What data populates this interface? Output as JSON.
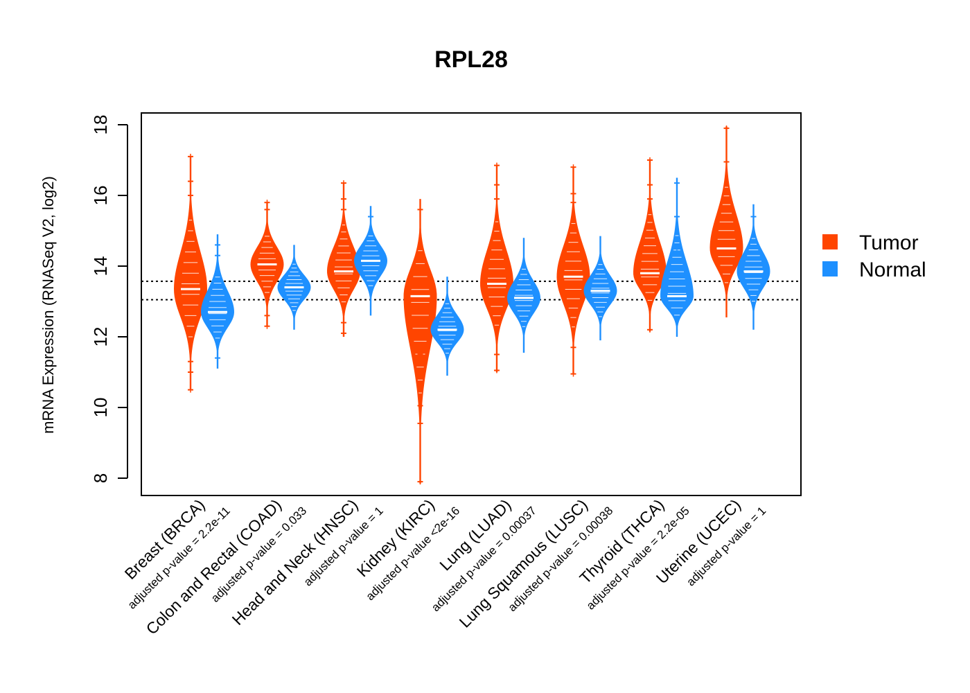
{
  "chart_data": {
    "type": "violin",
    "title": "RPL28",
    "xlabel": "",
    "ylabel": "mRNA Expression (RNASeq V2, log2)",
    "ylim": [
      7.5,
      18.3
    ],
    "yticks": [
      8,
      10,
      12,
      14,
      16,
      18
    ],
    "reference_lines": [
      13.05,
      13.57
    ],
    "colors": {
      "Tumor": "#FF4500",
      "Normal": "#1E90FF"
    },
    "legend": {
      "position": "right",
      "entries": [
        "Tumor",
        "Normal"
      ]
    },
    "groups": [
      {
        "name": "Breast (BRCA)",
        "pvalue": "adjusted p-value = 2.2e-11",
        "tumor": {
          "median": 13.35,
          "min": 10.5,
          "max": 17.1,
          "outliers": [
            10.5,
            11.0,
            11.3,
            16.0,
            16.4,
            17.1
          ]
        },
        "normal": {
          "median": 12.7,
          "min": 11.1,
          "max": 14.9,
          "outliers": [
            11.4,
            14.3,
            14.6
          ]
        }
      },
      {
        "name": "Colon and Rectal (COAD)",
        "pvalue": "adjusted p-value = 0.033",
        "tumor": {
          "median": 14.05,
          "min": 12.3,
          "max": 15.8,
          "outliers": [
            12.3,
            12.6,
            15.6,
            15.8
          ]
        },
        "normal": {
          "median": 13.4,
          "min": 12.2,
          "max": 14.6,
          "outliers": []
        }
      },
      {
        "name": "Head and Neck (HNSC)",
        "pvalue": "adjusted p-value = 1",
        "tumor": {
          "median": 13.85,
          "min": 12.0,
          "max": 16.35,
          "outliers": [
            12.1,
            12.4,
            15.6,
            15.9,
            16.35
          ]
        },
        "normal": {
          "median": 14.15,
          "min": 12.6,
          "max": 15.7,
          "outliers": [
            15.4
          ]
        }
      },
      {
        "name": "Kidney (KIRC)",
        "pvalue": "adjusted p-value <2e-16",
        "tumor": {
          "median": 13.15,
          "min": 7.85,
          "max": 15.9,
          "outliers": [
            7.9,
            9.55,
            10.05,
            11.5,
            15.6
          ]
        },
        "normal": {
          "median": 12.2,
          "min": 10.9,
          "max": 13.7,
          "outliers": []
        }
      },
      {
        "name": "Lung (LUAD)",
        "pvalue": "adjusted p-value = 0.00037",
        "tumor": {
          "median": 13.5,
          "min": 11.0,
          "max": 16.85,
          "outliers": [
            11.05,
            11.5,
            15.9,
            16.3,
            16.85
          ]
        },
        "normal": {
          "median": 13.1,
          "min": 11.55,
          "max": 14.8,
          "outliers": []
        }
      },
      {
        "name": "Lung Squamous (LUSC)",
        "pvalue": "adjusted p-value = 0.00038",
        "tumor": {
          "median": 13.7,
          "min": 10.95,
          "max": 16.8,
          "outliers": [
            10.95,
            11.7,
            15.8,
            16.05,
            16.8
          ]
        },
        "normal": {
          "median": 13.3,
          "min": 11.9,
          "max": 14.85,
          "outliers": []
        }
      },
      {
        "name": "Thyroid (THCA)",
        "pvalue": "adjusted p-value = 2.2e-05",
        "tumor": {
          "median": 13.8,
          "min": 12.15,
          "max": 17.0,
          "outliers": [
            12.2,
            15.9,
            16.3,
            17.0
          ]
        },
        "normal": {
          "median": 13.15,
          "min": 12.0,
          "max": 16.5,
          "outliers": [
            14.5,
            15.4,
            16.35
          ]
        }
      },
      {
        "name": "Uterine (UCEC)",
        "pvalue": "adjusted p-value = 1",
        "tumor": {
          "median": 14.5,
          "min": 12.55,
          "max": 17.95,
          "outliers": [
            16.95,
            17.9
          ]
        },
        "normal": {
          "median": 13.85,
          "min": 12.2,
          "max": 15.75,
          "outliers": [
            15.4
          ]
        }
      }
    ]
  }
}
